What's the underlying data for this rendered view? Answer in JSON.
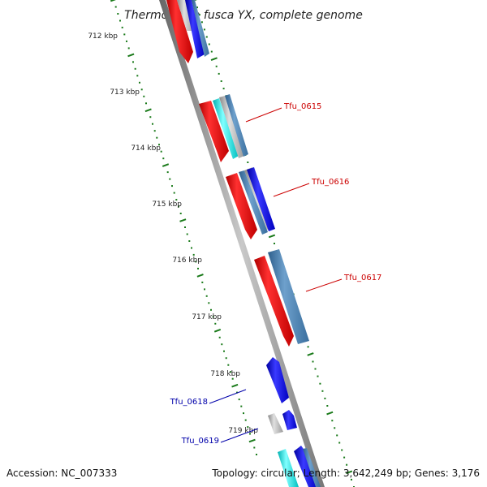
{
  "map": {
    "title": "Thermobifida fusca YX, complete genome",
    "accession_text": "Accession: NC_007333",
    "topology_text": "Topology: circular; Length: 3,642,249 bp; Genes: 3,176"
  },
  "ticks": [
    {
      "label": "712 kbp"
    },
    {
      "label": "713 kbp"
    },
    {
      "label": "714 kbp"
    },
    {
      "label": "715 kbp"
    },
    {
      "label": "716 kbp"
    },
    {
      "label": "717 kbp"
    },
    {
      "label": "718 kbp"
    },
    {
      "label": "719 kbp"
    }
  ],
  "labels": [
    {
      "text": "Tfu_0615",
      "color": "#cc0000"
    },
    {
      "text": "Tfu_0616",
      "color": "#cc0000"
    },
    {
      "text": "Tfu_0617",
      "color": "#cc0000"
    },
    {
      "text": "Tfu_0618",
      "color": "#0000aa"
    },
    {
      "text": "Tfu_0619",
      "color": "#0000aa"
    }
  ],
  "colors": {
    "red": "#ff0000",
    "cyan": "#00dddd",
    "steel": "#4a7fb0",
    "blue": "#0000ee",
    "grey": "#aaaaaa",
    "backbone": "#888888",
    "tick_dots": "#1a7a1a"
  }
}
